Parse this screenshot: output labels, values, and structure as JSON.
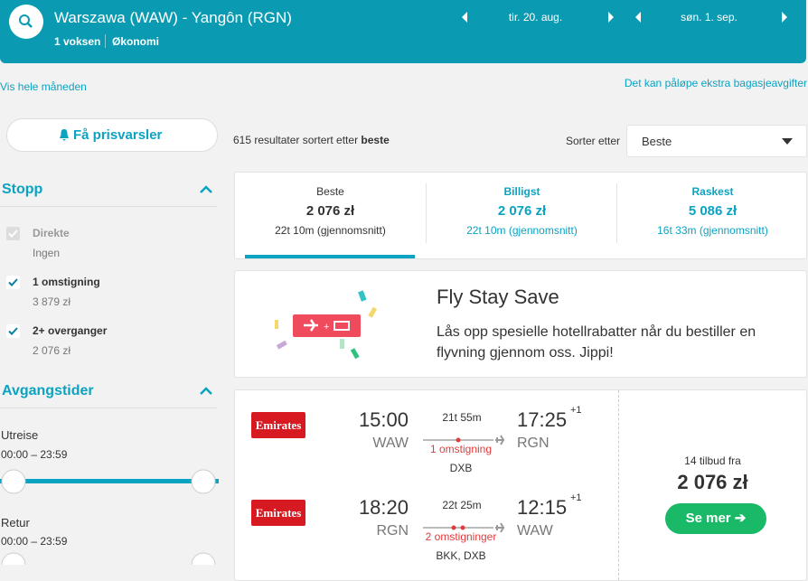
{
  "header": {
    "route": "Warszawa (WAW) - Yangôn (RGN)",
    "passengers": "1 voksen",
    "cabin": "Økonomi",
    "depart_date": "tir. 20. aug.",
    "return_date": "søn. 1. sep."
  },
  "links": {
    "month": "Vis hele måneden",
    "baggage": "Det kan påløpe ekstra bagasjeavgifter"
  },
  "sidebar": {
    "alert_button": "Få prisvarsler",
    "stops": {
      "title": "Stopp",
      "options": [
        {
          "label": "Direkte",
          "sub": "Ingen"
        },
        {
          "label": "1 omstigning",
          "sub": "3 879 zł"
        },
        {
          "label": "2+ overganger",
          "sub": "2 076 zł"
        }
      ]
    },
    "times": {
      "title": "Avgangstider",
      "outbound": {
        "label": "Utreise",
        "range": "00:00 – 23:59"
      },
      "return": {
        "label": "Retur",
        "range": "00:00 – 23:59"
      }
    }
  },
  "results": {
    "count_text": "615 resultater sortert etter",
    "sort_key": "beste",
    "sort_label": "Sorter etter",
    "sort_value": "Beste"
  },
  "tabs": [
    {
      "label": "Beste",
      "price": "2 076 zł",
      "duration": "22t 10m (gjennomsnitt)"
    },
    {
      "label": "Billigst",
      "price": "2 076 zł",
      "duration": "22t 10m (gjennomsnitt)"
    },
    {
      "label": "Raskest",
      "price": "5 086 zł",
      "duration": "16t 33m (gjennomsnitt)"
    }
  ],
  "promo": {
    "title": "Fly Stay Save",
    "text": "Lås opp spesielle hotellrabatter når du bestiller en flyvning gjennom oss. Jippi!"
  },
  "flight": {
    "legs": [
      {
        "airline": "Emirates",
        "dep_time": "15:00",
        "dep_airport": "WAW",
        "duration": "21t 55m",
        "stops": "1 omstigning",
        "via": "DXB",
        "arr_time": "17:25",
        "day_offset": "+1",
        "arr_airport": "RGN"
      },
      {
        "airline": "Emirates",
        "dep_time": "18:20",
        "dep_airport": "RGN",
        "duration": "22t 25m",
        "stops": "2 omstigninger",
        "via": "BKK, DXB",
        "arr_time": "12:15",
        "day_offset": "+1",
        "arr_airport": "WAW"
      }
    ],
    "offers": "14 tilbud fra",
    "price": "2 076 zł",
    "button": "Se mer"
  }
}
